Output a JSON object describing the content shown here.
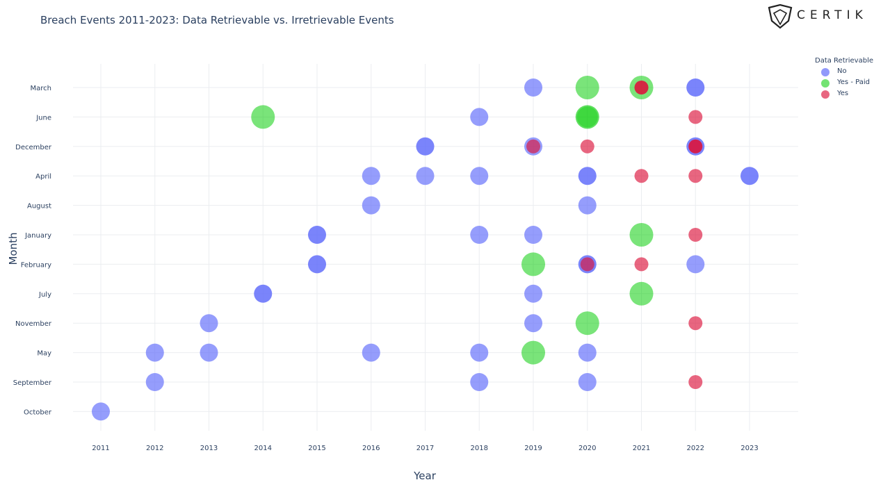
{
  "title": "Breach Events 2011-2023: Data Retrievable vs. Irretrievable Events",
  "brand": {
    "name": "CERTIK",
    "icon": "certik-shield-logo"
  },
  "legend": {
    "title": "Data Retrievable",
    "items": [
      {
        "label": "No",
        "color": "#636efa"
      },
      {
        "label": "Yes - Paid",
        "color": "#00cc00"
      },
      {
        "label": "Yes",
        "color": "#dc143c"
      }
    ]
  },
  "chart_data": {
    "type": "scatter",
    "title": "Breach Events 2011-2023: Data Retrievable vs. Irretrievable Events",
    "xlabel": "Year",
    "ylabel": "Month",
    "x_categories": [
      "2011",
      "2012",
      "2013",
      "2014",
      "2015",
      "2016",
      "2017",
      "2018",
      "2019",
      "2020",
      "2021",
      "2022",
      "2023"
    ],
    "y_categories": [
      "March",
      "June",
      "December",
      "April",
      "August",
      "January",
      "February",
      "July",
      "November",
      "May",
      "September",
      "October"
    ],
    "grid": true,
    "legend_position": "top-right",
    "series": [
      {
        "name": "No",
        "color": "#636efa",
        "points": [
          {
            "x": "2019",
            "y": "March",
            "count": 1
          },
          {
            "x": "2022",
            "y": "March",
            "count": 2
          },
          {
            "x": "2018",
            "y": "June",
            "count": 1
          },
          {
            "x": "2017",
            "y": "December",
            "count": 2
          },
          {
            "x": "2019",
            "y": "December",
            "count": 1
          },
          {
            "x": "2022",
            "y": "December",
            "count": 2
          },
          {
            "x": "2016",
            "y": "April",
            "count": 1
          },
          {
            "x": "2017",
            "y": "April",
            "count": 1
          },
          {
            "x": "2018",
            "y": "April",
            "count": 1
          },
          {
            "x": "2020",
            "y": "April",
            "count": 2
          },
          {
            "x": "2023",
            "y": "April",
            "count": 2
          },
          {
            "x": "2016",
            "y": "August",
            "count": 1
          },
          {
            "x": "2020",
            "y": "August",
            "count": 1
          },
          {
            "x": "2015",
            "y": "January",
            "count": 2
          },
          {
            "x": "2018",
            "y": "January",
            "count": 1
          },
          {
            "x": "2019",
            "y": "January",
            "count": 1
          },
          {
            "x": "2015",
            "y": "February",
            "count": 2
          },
          {
            "x": "2020",
            "y": "February",
            "count": 2
          },
          {
            "x": "2022",
            "y": "February",
            "count": 1
          },
          {
            "x": "2014",
            "y": "July",
            "count": 2
          },
          {
            "x": "2019",
            "y": "July",
            "count": 1
          },
          {
            "x": "2013",
            "y": "November",
            "count": 1
          },
          {
            "x": "2019",
            "y": "November",
            "count": 1
          },
          {
            "x": "2012",
            "y": "May",
            "count": 1
          },
          {
            "x": "2013",
            "y": "May",
            "count": 1
          },
          {
            "x": "2016",
            "y": "May",
            "count": 1
          },
          {
            "x": "2018",
            "y": "May",
            "count": 1
          },
          {
            "x": "2020",
            "y": "May",
            "count": 1
          },
          {
            "x": "2012",
            "y": "September",
            "count": 1
          },
          {
            "x": "2018",
            "y": "September",
            "count": 1
          },
          {
            "x": "2020",
            "y": "September",
            "count": 1
          },
          {
            "x": "2011",
            "y": "October",
            "count": 1
          }
        ]
      },
      {
        "name": "Yes - Paid",
        "color": "#00cc00",
        "points": [
          {
            "x": "2020",
            "y": "March",
            "count": 1
          },
          {
            "x": "2021",
            "y": "March",
            "count": 1
          },
          {
            "x": "2014",
            "y": "June",
            "count": 1
          },
          {
            "x": "2020",
            "y": "June",
            "count": 2
          },
          {
            "x": "2021",
            "y": "January",
            "count": 1
          },
          {
            "x": "2019",
            "y": "February",
            "count": 1
          },
          {
            "x": "2021",
            "y": "July",
            "count": 1
          },
          {
            "x": "2020",
            "y": "November",
            "count": 1
          },
          {
            "x": "2019",
            "y": "May",
            "count": 1
          }
        ]
      },
      {
        "name": "Yes",
        "color": "#dc143c",
        "points": [
          {
            "x": "2021",
            "y": "March",
            "count": 2
          },
          {
            "x": "2022",
            "y": "June",
            "count": 1
          },
          {
            "x": "2019",
            "y": "December",
            "count": 1
          },
          {
            "x": "2020",
            "y": "December",
            "count": 1
          },
          {
            "x": "2022",
            "y": "December",
            "count": 2
          },
          {
            "x": "2021",
            "y": "April",
            "count": 1
          },
          {
            "x": "2022",
            "y": "April",
            "count": 1
          },
          {
            "x": "2022",
            "y": "January",
            "count": 1
          },
          {
            "x": "2020",
            "y": "February",
            "count": 1
          },
          {
            "x": "2021",
            "y": "February",
            "count": 1
          },
          {
            "x": "2022",
            "y": "November",
            "count": 1
          },
          {
            "x": "2022",
            "y": "September",
            "count": 1
          }
        ]
      }
    ]
  }
}
